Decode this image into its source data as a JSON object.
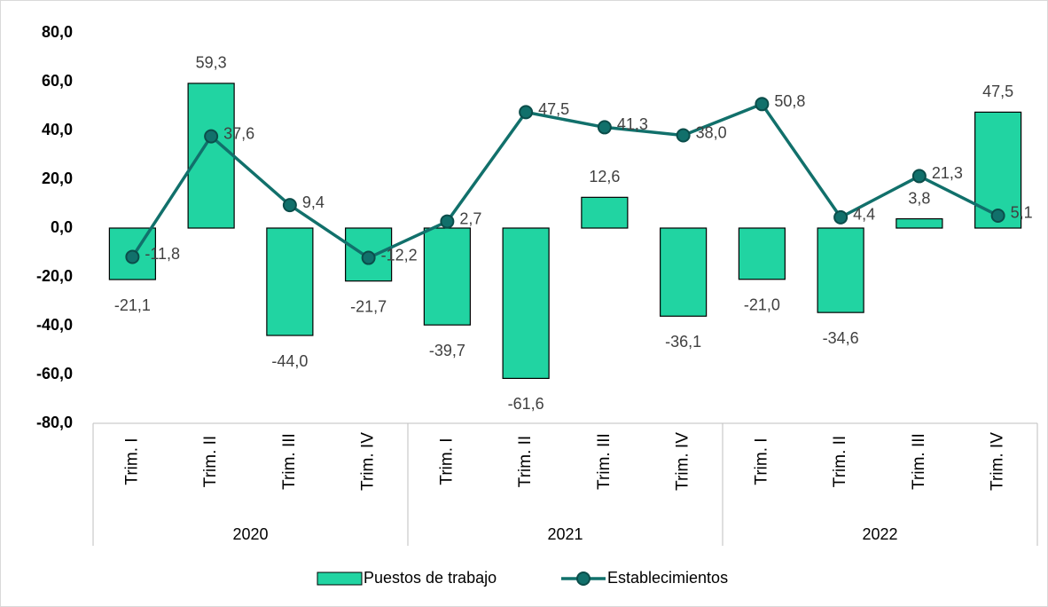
{
  "chart_data": {
    "type": "combo",
    "categories": [
      "Trim. I",
      "Trim. II",
      "Trim. III",
      "Trim. IV",
      "Trim. I",
      "Trim. II",
      "Trim. III",
      "Trim. IV",
      "Trim. I",
      "Trim. II",
      "Trim. III",
      "Trim. IV"
    ],
    "category_groups": [
      "2020",
      "2021",
      "2022"
    ],
    "ylim": [
      -80,
      80
    ],
    "yticks": [
      {
        "value": -80,
        "label": "-80,0"
      },
      {
        "value": -60,
        "label": "-60,0"
      },
      {
        "value": -40,
        "label": "-40,0"
      },
      {
        "value": -20,
        "label": "-20,0"
      },
      {
        "value": 0,
        "label": "0,0"
      },
      {
        "value": 20,
        "label": "20,0"
      },
      {
        "value": 40,
        "label": "40,0"
      },
      {
        "value": 60,
        "label": "60,0"
      },
      {
        "value": 80,
        "label": "80,0"
      }
    ],
    "grid": false,
    "legend": "bottom",
    "series": [
      {
        "name": "Puestos de trabajo",
        "type": "bar",
        "color": "#21d4a2",
        "values": [
          -21.1,
          59.3,
          -44.0,
          -21.7,
          -39.7,
          -61.6,
          12.6,
          -36.1,
          -21.0,
          -34.6,
          3.8,
          47.5
        ],
        "value_labels": [
          "-21,1",
          "59,3",
          "-44,0",
          "-21,7",
          "-39,7",
          "-61,6",
          "12,6",
          "-36,1",
          "-21,0",
          "-34,6",
          "3,8",
          "47,5"
        ]
      },
      {
        "name": "Establecimientos",
        "type": "line",
        "color": "#11706b",
        "values": [
          -11.8,
          37.6,
          9.4,
          -12.2,
          2.7,
          47.5,
          41.3,
          38.0,
          50.8,
          4.4,
          21.3,
          5.1
        ],
        "value_labels": [
          "-11,8",
          "37,6",
          "9,4",
          "-12,2",
          "2,7",
          "47,5",
          "41,3",
          "38,0",
          "50,8",
          "4,4",
          "21,3",
          "5,1"
        ]
      }
    ]
  }
}
